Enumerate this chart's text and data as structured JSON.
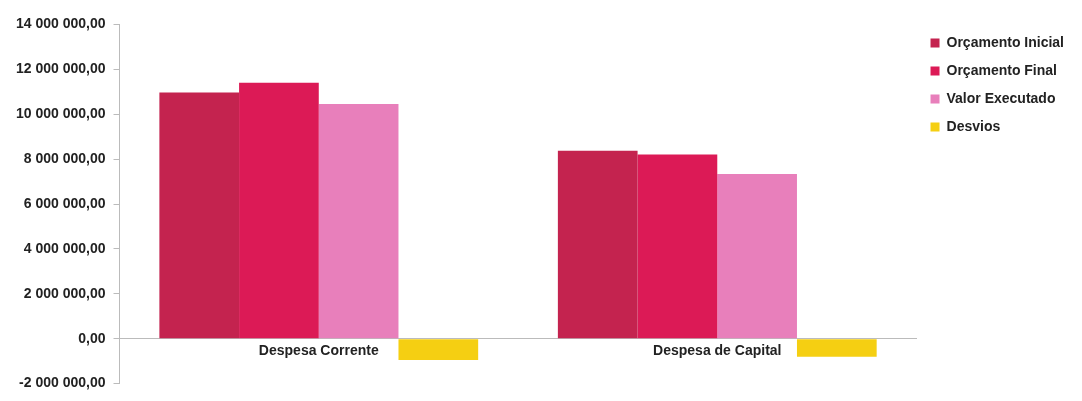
{
  "chart_data": {
    "type": "bar",
    "categories": [
      "Despesa Corrente",
      "Despesa de Capital"
    ],
    "series": [
      {
        "name": "Orçamento Inicial",
        "color": "#c4234f",
        "values": [
          10970000,
          8370000
        ]
      },
      {
        "name": "Orçamento Final",
        "color": "#dc1a56",
        "values": [
          11400000,
          8200000
        ]
      },
      {
        "name": "Valor Executado",
        "color": "#e87fbb",
        "values": [
          10450000,
          7340000
        ]
      },
      {
        "name": "Desvios",
        "color": "#f5cf12",
        "values": [
          -950000,
          -800000
        ]
      }
    ],
    "ylim": [
      -2000000,
      14000000
    ],
    "yticks": [
      {
        "value": -2000000,
        "label": "-2 000 000,00"
      },
      {
        "value": 0,
        "label": "0,00"
      },
      {
        "value": 2000000,
        "label": "2 000 000,00"
      },
      {
        "value": 4000000,
        "label": "4 000 000,00"
      },
      {
        "value": 6000000,
        "label": "6 000 000,00"
      },
      {
        "value": 8000000,
        "label": "8 000 000,00"
      },
      {
        "value": 10000000,
        "label": "10 000 000,00"
      },
      {
        "value": 12000000,
        "label": "12 000 000,00"
      },
      {
        "value": 14000000,
        "label": "14 000 000,00"
      }
    ],
    "legend": "top right"
  }
}
